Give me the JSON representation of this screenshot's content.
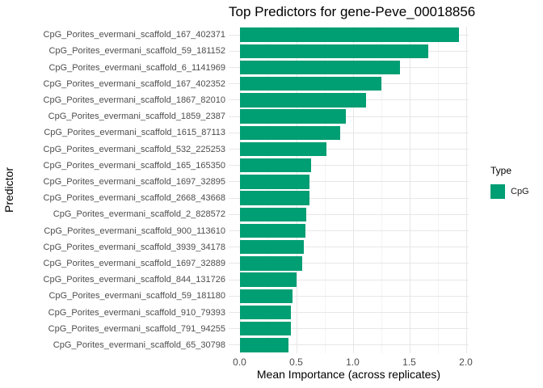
{
  "chart_data": {
    "type": "bar",
    "orientation": "horizontal",
    "title": "Top Predictors for gene-Peve_00018856",
    "xlabel": "Mean Importance (across replicates)",
    "ylabel": "Predictor",
    "categories": [
      "CpG_Porites_evermani_scaffold_167_402371",
      "CpG_Porites_evermani_scaffold_59_181152",
      "CpG_Porites_evermani_scaffold_6_1141969",
      "CpG_Porites_evermani_scaffold_167_402352",
      "CpG_Porites_evermani_scaffold_1867_82010",
      "CpG_Porites_evermani_scaffold_1859_2387",
      "CpG_Porites_evermani_scaffold_1615_87113",
      "CpG_Porites_evermani_scaffold_532_225253",
      "CpG_Porites_evermani_scaffold_165_165350",
      "CpG_Porites_evermani_scaffold_1697_32895",
      "CpG_Porites_evermani_scaffold_2668_43668",
      "CpG_Porites_evermani_scaffold_2_828572",
      "CpG_Porites_evermani_scaffold_900_113610",
      "CpG_Porites_evermani_scaffold_3939_34178",
      "CpG_Porites_evermani_scaffold_1697_32889",
      "CpG_Porites_evermani_scaffold_844_131726",
      "CpG_Porites_evermani_scaffold_59_181180",
      "CpG_Porites_evermani_scaffold_910_79393",
      "CpG_Porites_evermani_scaffold_791_94255",
      "CpG_Porites_evermani_scaffold_65_30798"
    ],
    "values": [
      1.94,
      1.67,
      1.42,
      1.25,
      1.12,
      0.94,
      0.89,
      0.77,
      0.63,
      0.62,
      0.62,
      0.59,
      0.58,
      0.57,
      0.55,
      0.5,
      0.47,
      0.45,
      0.45,
      0.43
    ],
    "xlim": [
      0,
      2.02
    ],
    "x_major_ticks": [
      0.0,
      0.5,
      1.0,
      1.5,
      2.0
    ],
    "x_tick_labels": [
      "0.0",
      "0.5",
      "1.0",
      "1.5",
      "2.0"
    ],
    "x_minor_ticks": [
      0.25,
      0.75,
      1.25,
      1.75
    ],
    "grid": true,
    "legend": {
      "title": "Type",
      "position": "right",
      "entries": [
        {
          "label": "CpG",
          "color": "#009E73"
        }
      ]
    },
    "colors": {
      "bar": "#009E73",
      "grid_major": "#e7e7e7",
      "grid_minor": "#f3f3f3",
      "axis_text": "#4d4d4d",
      "title_text": "#000000",
      "background": "#ffffff"
    }
  }
}
